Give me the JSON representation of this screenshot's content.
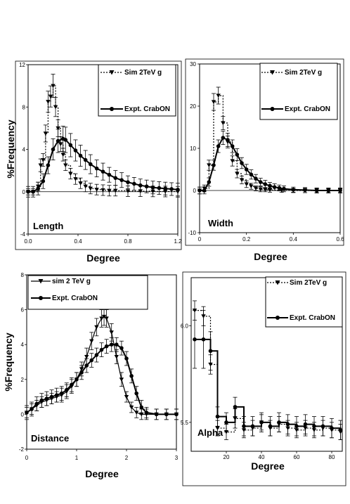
{
  "chart_data": [
    {
      "type": "line",
      "panel_label": "Length",
      "xlabel": "Degree",
      "ylabel": "%Frequency",
      "xlim": [
        0,
        1.2
      ],
      "ylim": [
        -4,
        12
      ],
      "xticks": [
        "0.0",
        "0.4",
        "0.8",
        "1.2"
      ],
      "yticks": [
        "-4",
        "0",
        "4",
        "8",
        "12"
      ],
      "xtick_values": [
        0,
        0.4,
        0.8,
        1.2
      ],
      "ytick_values": [
        -4,
        0,
        4,
        8,
        12
      ],
      "legend": [
        "Sim  2TeV   g",
        "Expt.  CrabON"
      ],
      "series": [
        {
          "name": "Sim  2TeV   g",
          "marker": "triangle-down",
          "style": "dotted-step",
          "x": [
            0.0,
            0.04,
            0.08,
            0.1,
            0.12,
            0.14,
            0.16,
            0.18,
            0.2,
            0.22,
            0.24,
            0.26,
            0.28,
            0.3,
            0.34,
            0.38,
            0.42,
            0.46,
            0.5,
            0.55,
            0.6,
            0.65,
            0.7,
            0.8,
            0.9,
            1.0,
            1.1,
            1.2
          ],
          "y": [
            0.0,
            0.0,
            0.5,
            2.5,
            3.0,
            5.5,
            8.5,
            9.0,
            10.0,
            8.0,
            6.0,
            4.5,
            3.5,
            2.5,
            1.7,
            1.2,
            0.8,
            0.5,
            0.3,
            0.2,
            0.15,
            0.1,
            0.1,
            0.05,
            0.05,
            0.03,
            0.02,
            0.0
          ],
          "err": [
            0.3,
            0.3,
            0.4,
            0.6,
            0.6,
            0.8,
            1.0,
            1.0,
            1.1,
            0.9,
            0.8,
            0.7,
            0.6,
            0.5,
            0.5,
            0.5,
            0.5,
            0.5,
            0.5,
            0.5,
            0.5,
            0.5,
            0.5,
            0.5,
            0.5,
            0.5,
            0.5,
            0.5
          ]
        },
        {
          "name": "Expt.  CrabON",
          "marker": "circle",
          "style": "solid",
          "x": [
            0.0,
            0.04,
            0.08,
            0.12,
            0.16,
            0.2,
            0.24,
            0.28,
            0.3,
            0.34,
            0.38,
            0.42,
            0.46,
            0.5,
            0.55,
            0.6,
            0.65,
            0.7,
            0.75,
            0.8,
            0.85,
            0.9,
            0.95,
            1.0,
            1.05,
            1.1,
            1.15,
            1.2
          ],
          "y": [
            0.0,
            0.0,
            0.3,
            1.0,
            2.5,
            4.0,
            4.8,
            5.0,
            4.9,
            4.4,
            3.9,
            3.4,
            3.0,
            2.6,
            2.2,
            1.9,
            1.6,
            1.3,
            1.1,
            0.9,
            0.75,
            0.6,
            0.5,
            0.4,
            0.35,
            0.3,
            0.25,
            0.2
          ],
          "err": [
            0.5,
            0.5,
            0.6,
            0.7,
            0.8,
            1.0,
            1.1,
            1.2,
            1.2,
            1.1,
            1.0,
            1.0,
            0.9,
            0.9,
            0.8,
            0.8,
            0.7,
            0.7,
            0.7,
            0.6,
            0.6,
            0.6,
            0.6,
            0.6,
            0.6,
            0.6,
            0.6,
            0.6
          ]
        }
      ]
    },
    {
      "type": "line",
      "panel_label": "Width",
      "xlabel": "Degree",
      "ylabel": "",
      "xlim": [
        0,
        0.6
      ],
      "ylim": [
        -10,
        30
      ],
      "xticks": [
        "0",
        "0.2",
        "0.4",
        "0.6"
      ],
      "yticks": [
        "-10",
        "0",
        "10",
        "20",
        "30"
      ],
      "xtick_values": [
        0,
        0.2,
        0.4,
        0.6
      ],
      "ytick_values": [
        -10,
        0,
        10,
        20,
        30
      ],
      "legend": [
        "Sim  2TeV   g",
        "Expt.  CrabON"
      ],
      "series": [
        {
          "name": "Sim  2TeV   g",
          "marker": "triangle-down",
          "style": "dotted-step",
          "x": [
            0.0,
            0.02,
            0.04,
            0.06,
            0.08,
            0.1,
            0.12,
            0.14,
            0.16,
            0.18,
            0.2,
            0.22,
            0.24,
            0.26,
            0.28,
            0.3,
            0.35,
            0.4,
            0.45,
            0.5,
            0.55,
            0.6
          ],
          "y": [
            0.0,
            0.5,
            6.0,
            21.0,
            22.5,
            16.0,
            11.5,
            7.0,
            4.0,
            2.5,
            1.5,
            1.0,
            0.5,
            0.3,
            0.2,
            0.1,
            0.05,
            0.0,
            0.0,
            0.0,
            0.0,
            0.0
          ],
          "err": [
            0.8,
            0.8,
            1.2,
            2.0,
            2.0,
            1.6,
            1.4,
            1.2,
            1.0,
            0.9,
            0.8,
            0.7,
            0.6,
            0.6,
            0.5,
            0.5,
            0.5,
            0.5,
            0.5,
            0.5,
            0.5,
            0.5
          ]
        },
        {
          "name": "Expt.  CrabON",
          "marker": "circle",
          "style": "solid",
          "x": [
            0.0,
            0.02,
            0.04,
            0.06,
            0.08,
            0.1,
            0.12,
            0.14,
            0.16,
            0.18,
            0.2,
            0.22,
            0.24,
            0.26,
            0.28,
            0.3,
            0.32,
            0.34,
            0.36,
            0.4,
            0.45,
            0.5,
            0.55,
            0.6
          ],
          "y": [
            0.0,
            0.0,
            2.0,
            6.0,
            10.5,
            12.5,
            12.0,
            10.5,
            8.5,
            6.5,
            5.0,
            3.8,
            2.8,
            2.0,
            1.5,
            1.1,
            0.8,
            0.6,
            0.4,
            0.2,
            0.1,
            0.0,
            0.0,
            0.0
          ],
          "err": [
            0.8,
            0.8,
            1.0,
            1.2,
            1.5,
            1.6,
            1.6,
            1.5,
            1.4,
            1.3,
            1.2,
            1.1,
            1.0,
            0.9,
            0.9,
            0.8,
            0.8,
            0.7,
            0.7,
            0.6,
            0.6,
            0.6,
            0.6,
            0.6
          ]
        }
      ]
    },
    {
      "type": "line",
      "panel_label": "Distance",
      "xlabel": "Degree",
      "ylabel": "%Frequency",
      "xlim": [
        0,
        3
      ],
      "ylim": [
        -2,
        8
      ],
      "xticks": [
        "0",
        "1",
        "2",
        "3"
      ],
      "yticks": [
        "-2",
        "0",
        "2",
        "4",
        "6",
        "8"
      ],
      "xtick_values": [
        0,
        1,
        2,
        3
      ],
      "ytick_values": [
        -2,
        0,
        2,
        4,
        6,
        8
      ],
      "legend": [
        "sim  2 TeV   g",
        "Expt. CrabON"
      ],
      "series": [
        {
          "name": "sim  2 TeV   g",
          "marker": "triangle-down",
          "style": "solid",
          "x": [
            0.0,
            0.1,
            0.2,
            0.3,
            0.4,
            0.5,
            0.6,
            0.7,
            0.8,
            0.9,
            1.0,
            1.1,
            1.2,
            1.3,
            1.4,
            1.5,
            1.55,
            1.6,
            1.7,
            1.8,
            1.9,
            2.0,
            2.1,
            2.2,
            2.3,
            2.4,
            2.6,
            2.8,
            3.0
          ],
          "y": [
            0.1,
            0.3,
            0.5,
            0.7,
            0.8,
            0.9,
            1.0,
            1.1,
            1.3,
            1.6,
            2.0,
            2.6,
            3.3,
            4.2,
            5.0,
            5.5,
            5.6,
            5.5,
            4.7,
            3.3,
            2.0,
            1.0,
            0.4,
            0.1,
            0.0,
            0.0,
            0.0,
            0.0,
            0.0
          ],
          "err": [
            0.3,
            0.3,
            0.3,
            0.3,
            0.3,
            0.3,
            0.3,
            0.4,
            0.4,
            0.4,
            0.4,
            0.4,
            0.5,
            0.5,
            0.5,
            0.5,
            0.5,
            0.5,
            0.5,
            0.4,
            0.4,
            0.3,
            0.3,
            0.3,
            0.3,
            0.3,
            0.3,
            0.3,
            0.3
          ]
        },
        {
          "name": "Expt. CrabON",
          "marker": "circle",
          "style": "solid",
          "x": [
            0.0,
            0.1,
            0.2,
            0.3,
            0.4,
            0.5,
            0.6,
            0.7,
            0.8,
            0.9,
            1.0,
            1.1,
            1.2,
            1.3,
            1.4,
            1.5,
            1.6,
            1.7,
            1.8,
            1.9,
            2.0,
            2.1,
            2.2,
            2.3,
            2.4,
            2.6,
            2.8,
            3.0
          ],
          "y": [
            0.1,
            0.3,
            0.6,
            0.8,
            0.9,
            1.0,
            1.1,
            1.2,
            1.4,
            1.7,
            2.0,
            2.4,
            2.8,
            3.1,
            3.4,
            3.7,
            3.9,
            4.0,
            4.0,
            3.8,
            3.2,
            2.2,
            1.2,
            0.4,
            0.1,
            0.0,
            0.0,
            0.0
          ],
          "err": [
            0.4,
            0.4,
            0.4,
            0.4,
            0.4,
            0.4,
            0.4,
            0.4,
            0.4,
            0.4,
            0.4,
            0.4,
            0.4,
            0.4,
            0.4,
            0.4,
            0.4,
            0.4,
            0.4,
            0.4,
            0.4,
            0.4,
            0.4,
            0.4,
            0.3,
            0.3,
            0.3,
            0.3
          ]
        }
      ]
    },
    {
      "type": "line",
      "panel_label": "Alpha",
      "xlabel": "Degree",
      "ylabel": "",
      "xlim": [
        0,
        86
      ],
      "ylim": [
        5.35,
        6.25
      ],
      "xticks": [
        "20",
        "40",
        "60",
        "80"
      ],
      "yticks": [
        "5.5",
        "6.0"
      ],
      "xtick_values": [
        20,
        40,
        60,
        80
      ],
      "ytick_values": [
        5.5,
        6.0
      ],
      "legend": [
        "Sim  2TeV   g",
        "Expt. CrabON"
      ],
      "series": [
        {
          "name": "Sim  2TeV   g",
          "marker": "triangle-down",
          "style": "dotted-step",
          "x": [
            2,
            7,
            11,
            15,
            20,
            25,
            30,
            35,
            40,
            45,
            50,
            55,
            60,
            65,
            70,
            75,
            80,
            85
          ],
          "y": [
            6.08,
            6.05,
            5.8,
            5.47,
            5.45,
            5.52,
            5.46,
            5.47,
            5.5,
            5.47,
            5.49,
            5.47,
            5.46,
            5.47,
            5.46,
            5.47,
            5.46,
            5.45
          ],
          "err": [
            0.05,
            0.05,
            0.05,
            0.04,
            0.04,
            0.05,
            0.04,
            0.04,
            0.04,
            0.04,
            0.04,
            0.04,
            0.04,
            0.04,
            0.04,
            0.04,
            0.04,
            0.04
          ]
        },
        {
          "name": "Expt. CrabON",
          "marker": "circle",
          "style": "solid-step",
          "x": [
            2,
            7,
            11,
            15,
            20,
            25,
            30,
            35,
            40,
            45,
            50,
            55,
            60,
            65,
            70,
            75,
            80,
            85
          ],
          "y": [
            5.93,
            5.93,
            5.87,
            5.53,
            5.5,
            5.58,
            5.48,
            5.48,
            5.5,
            5.48,
            5.5,
            5.49,
            5.48,
            5.49,
            5.48,
            5.48,
            5.47,
            5.46
          ],
          "err": [
            0.15,
            0.15,
            0.1,
            0.05,
            0.05,
            0.05,
            0.05,
            0.05,
            0.05,
            0.05,
            0.05,
            0.05,
            0.05,
            0.05,
            0.05,
            0.05,
            0.05,
            0.05
          ]
        }
      ]
    }
  ]
}
